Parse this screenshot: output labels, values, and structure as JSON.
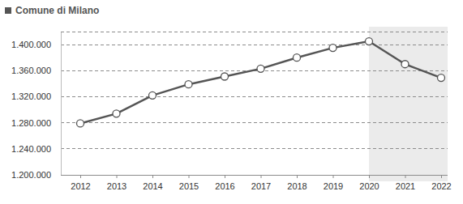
{
  "chart_data": {
    "type": "line",
    "title": "Comune di Milano",
    "categories": [
      "2012",
      "2013",
      "2014",
      "2015",
      "2016",
      "2017",
      "2018",
      "2019",
      "2020",
      "2021",
      "2022"
    ],
    "values": [
      1279000,
      1294000,
      1322000,
      1339000,
      1351000,
      1363000,
      1380000,
      1395000,
      1405000,
      1370000,
      1349000
    ],
    "color": "#555555",
    "marker": "circle",
    "ylim": [
      1200000,
      1420000
    ],
    "yticks": [
      {
        "value": 1200000,
        "label": "1.200.000"
      },
      {
        "value": 1240000,
        "label": "1.240.000"
      },
      {
        "value": 1280000,
        "label": "1.280.000"
      },
      {
        "value": 1320000,
        "label": "1.320.000"
      },
      {
        "value": 1360000,
        "label": "1.360.000"
      },
      {
        "value": 1400000,
        "label": "1.400.000"
      }
    ],
    "grid": true,
    "highlight": {
      "from": "2020",
      "to": "2022"
    }
  }
}
